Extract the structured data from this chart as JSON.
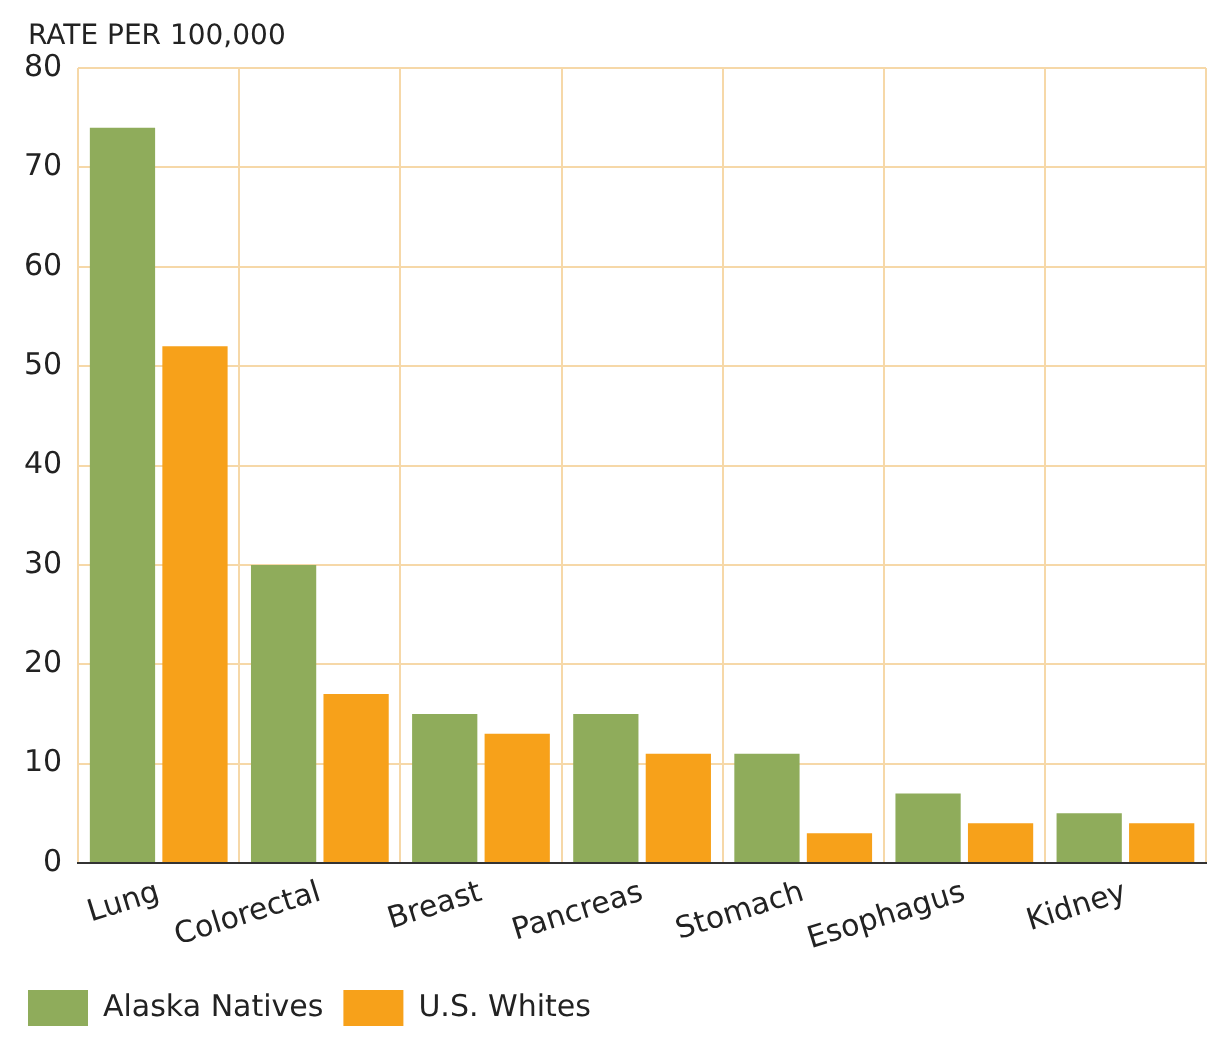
{
  "chart_data": {
    "type": "bar",
    "ylabel": "RATE PER 100,000",
    "categories": [
      "Lung",
      "Colorectal",
      "Breast",
      "Pancreas",
      "Stomach",
      "Esophagus",
      "Kidney"
    ],
    "series": [
      {
        "name": "Alaska Natives",
        "color": "#8fac5b",
        "values": [
          74,
          30,
          15,
          15,
          11,
          7,
          5
        ]
      },
      {
        "name": "U.S. Whites",
        "color": "#f7a11a",
        "values": [
          52,
          17,
          13,
          11,
          3,
          4,
          4
        ]
      }
    ],
    "ylim": [
      0,
      80
    ],
    "yticks": [
      0,
      10,
      20,
      30,
      40,
      50,
      60,
      70,
      80
    ],
    "grid": true,
    "legend": "bottom left"
  }
}
